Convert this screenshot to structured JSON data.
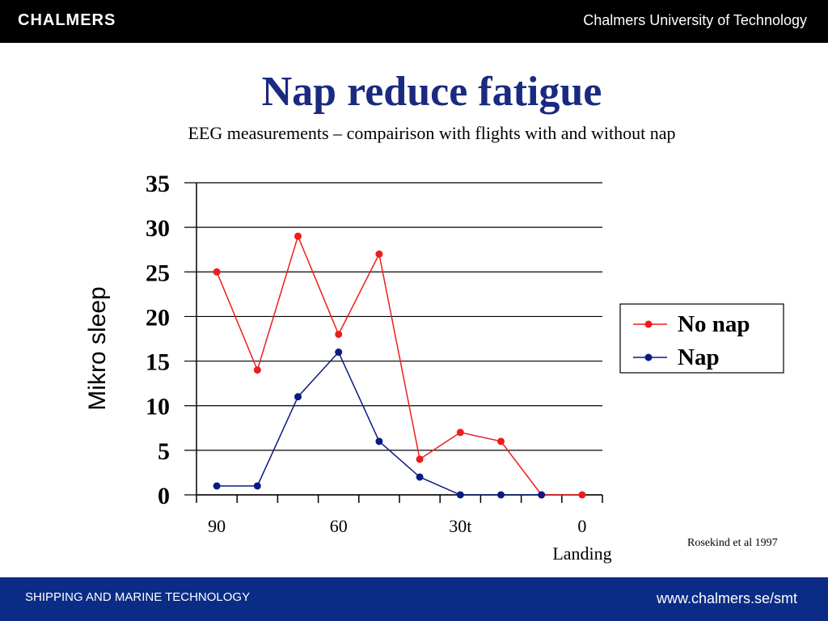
{
  "header": {
    "brand": "CHALMERS",
    "university": "Chalmers University of Technology"
  },
  "slide": {
    "title": "Nap reduce fatigue",
    "subtitle": "EEG measurements – compairison with flights with and without nap",
    "citation": "Rosekind et al 1997"
  },
  "footer": {
    "left": "SHIPPING AND MARINE TECHNOLOGY",
    "right": "www.chalmers.se/smt"
  },
  "colors": {
    "no_nap": "#ee1c1c",
    "nap": "#0a1a82",
    "title": "#1a2a80",
    "footer_bg": "#0b2c86"
  },
  "chart_data": {
    "type": "line",
    "title": "",
    "ylabel": "Mikro sleep",
    "xlabel": "Landing",
    "ylim": [
      0,
      35
    ],
    "yticks": [
      0,
      5,
      10,
      15,
      20,
      25,
      30,
      35
    ],
    "grid": true,
    "legend_position": "right",
    "x_tick_labels": [
      "90",
      "60",
      "30t",
      "0"
    ],
    "x_tick_label_at_point": [
      0,
      3,
      6,
      9
    ],
    "categories": [
      "90",
      "",
      "",
      "60",
      "",
      "",
      "30t",
      "",
      "",
      "0"
    ],
    "series": [
      {
        "name": "No nap",
        "color": "#ee1c1c",
        "values": [
          25,
          14,
          29,
          18,
          27,
          4,
          7,
          6,
          0,
          0
        ]
      },
      {
        "name": "Nap",
        "color": "#0a1a82",
        "values": [
          1,
          1,
          11,
          16,
          6,
          2,
          0,
          0,
          0,
          null
        ]
      }
    ]
  }
}
